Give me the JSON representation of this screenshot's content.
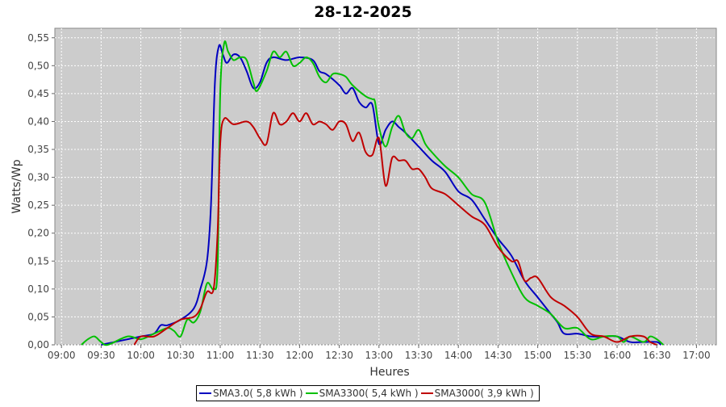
{
  "chart_data": {
    "type": "line",
    "title": "28-12-2025",
    "xlabel": "Heures",
    "ylabel": "Watts/Wp",
    "xlim": [
      "08:55",
      "17:15"
    ],
    "ylim": [
      0,
      0.567
    ],
    "grid": true,
    "legend_position": "bottom",
    "x_ticks": [
      "09:00",
      "09:30",
      "10:00",
      "10:30",
      "11:00",
      "11:30",
      "12:00",
      "12:30",
      "13:00",
      "13:30",
      "14:00",
      "14:30",
      "15:00",
      "15:30",
      "16:00",
      "16:30",
      "17:00"
    ],
    "y_ticks": [
      "0,00",
      "0,05",
      "0,10",
      "0,15",
      "0,20",
      "0,25",
      "0,30",
      "0,35",
      "0,40",
      "0,45",
      "0,50",
      "0,55"
    ],
    "colors": {
      "plot_background": "#cccccc",
      "grid": "#ffffff"
    },
    "series": [
      {
        "name": "SMA3.0( 5,8 kWh )",
        "color": "#0000c0",
        "x": [
          "09:30",
          "09:40",
          "09:50",
          "10:00",
          "10:10",
          "10:15",
          "10:20",
          "10:30",
          "10:40",
          "10:45",
          "10:50",
          "10:53",
          "10:56",
          "10:59",
          "11:02",
          "11:05",
          "11:10",
          "11:15",
          "11:20",
          "11:25",
          "11:30",
          "11:35",
          "11:40",
          "11:50",
          "12:00",
          "12:10",
          "12:15",
          "12:20",
          "12:30",
          "12:35",
          "12:40",
          "12:45",
          "12:50",
          "12:55",
          "13:00",
          "13:05",
          "13:10",
          "13:15",
          "13:20",
          "13:30",
          "13:40",
          "13:50",
          "14:00",
          "14:10",
          "14:20",
          "14:30",
          "14:40",
          "14:50",
          "15:00",
          "15:10",
          "15:15",
          "15:20",
          "15:30",
          "15:40",
          "15:50",
          "16:00",
          "16:10",
          "16:20",
          "16:30",
          "16:33"
        ],
        "y": [
          0,
          0.005,
          0.01,
          0.015,
          0.02,
          0.035,
          0.035,
          0.045,
          0.065,
          0.1,
          0.15,
          0.25,
          0.47,
          0.535,
          0.52,
          0.505,
          0.52,
          0.515,
          0.49,
          0.46,
          0.47,
          0.505,
          0.515,
          0.51,
          0.515,
          0.51,
          0.49,
          0.485,
          0.465,
          0.45,
          0.46,
          0.435,
          0.425,
          0.43,
          0.36,
          0.385,
          0.4,
          0.39,
          0.38,
          0.355,
          0.33,
          0.31,
          0.275,
          0.26,
          0.225,
          0.19,
          0.16,
          0.115,
          0.085,
          0.055,
          0.04,
          0.02,
          0.02,
          0.015,
          0.015,
          0.015,
          0.005,
          0.005,
          0.005,
          0
        ]
      },
      {
        "name": "SMA3300( 5,4 kWh )",
        "color": "#00c000",
        "x": [
          "09:15",
          "09:20",
          "09:25",
          "09:30",
          "09:35",
          "09:50",
          "10:00",
          "10:10",
          "10:20",
          "10:25",
          "10:30",
          "10:35",
          "10:40",
          "10:45",
          "10:50",
          "10:55",
          "10:58",
          "11:00",
          "11:03",
          "11:06",
          "11:10",
          "11:15",
          "11:20",
          "11:25",
          "11:28",
          "11:35",
          "11:40",
          "11:45",
          "11:50",
          "11:55",
          "12:00",
          "12:05",
          "12:10",
          "12:15",
          "12:20",
          "12:25",
          "12:30",
          "12:35",
          "12:40",
          "12:50",
          "12:55",
          "12:57",
          "13:00",
          "13:05",
          "13:10",
          "13:15",
          "13:20",
          "13:25",
          "13:30",
          "13:35",
          "13:40",
          "13:50",
          "14:00",
          "14:10",
          "14:20",
          "14:30",
          "14:40",
          "14:50",
          "15:00",
          "15:10",
          "15:20",
          "15:30",
          "15:40",
          "15:50",
          "16:00",
          "16:05",
          "16:10",
          "16:20",
          "16:25",
          "16:30",
          "16:35"
        ],
        "y": [
          0,
          0.01,
          0.015,
          0.005,
          0,
          0.015,
          0.01,
          0.02,
          0.03,
          0.025,
          0.015,
          0.045,
          0.04,
          0.06,
          0.11,
          0.1,
          0.14,
          0.45,
          0.54,
          0.525,
          0.51,
          0.515,
          0.51,
          0.47,
          0.455,
          0.49,
          0.525,
          0.515,
          0.525,
          0.5,
          0.505,
          0.515,
          0.505,
          0.48,
          0.47,
          0.485,
          0.485,
          0.48,
          0.465,
          0.445,
          0.44,
          0.435,
          0.39,
          0.355,
          0.39,
          0.41,
          0.38,
          0.37,
          0.385,
          0.36,
          0.345,
          0.32,
          0.3,
          0.27,
          0.255,
          0.185,
          0.13,
          0.085,
          0.07,
          0.055,
          0.03,
          0.03,
          0.01,
          0.015,
          0.015,
          0.005,
          0.015,
          0.005,
          0.015,
          0.01,
          0
        ]
      },
      {
        "name": "SMA3000( 3,9 kWh )",
        "color": "#c00000",
        "x": [
          "09:55",
          "10:00",
          "10:10",
          "10:20",
          "10:30",
          "10:40",
          "10:45",
          "10:50",
          "10:55",
          "10:58",
          "11:00",
          "11:03",
          "11:10",
          "11:20",
          "11:25",
          "11:30",
          "11:35",
          "11:40",
          "11:45",
          "11:50",
          "11:55",
          "12:00",
          "12:05",
          "12:10",
          "12:15",
          "12:20",
          "12:25",
          "12:30",
          "12:35",
          "12:40",
          "12:45",
          "12:50",
          "12:55",
          "13:00",
          "13:05",
          "13:10",
          "13:15",
          "13:20",
          "13:25",
          "13:30",
          "13:35",
          "13:40",
          "13:50",
          "14:00",
          "14:10",
          "14:20",
          "14:30",
          "14:40",
          "14:45",
          "14:50",
          "14:55",
          "15:00",
          "15:10",
          "15:20",
          "15:30",
          "15:40",
          "15:50",
          "16:00",
          "16:10",
          "16:20",
          "16:25",
          "16:30"
        ],
        "y": [
          0,
          0.015,
          0.015,
          0.03,
          0.045,
          0.05,
          0.065,
          0.095,
          0.1,
          0.2,
          0.36,
          0.405,
          0.395,
          0.4,
          0.39,
          0.37,
          0.36,
          0.415,
          0.395,
          0.4,
          0.415,
          0.4,
          0.415,
          0.395,
          0.4,
          0.395,
          0.385,
          0.4,
          0.395,
          0.365,
          0.38,
          0.345,
          0.34,
          0.37,
          0.285,
          0.335,
          0.33,
          0.33,
          0.315,
          0.315,
          0.3,
          0.28,
          0.27,
          0.25,
          0.23,
          0.215,
          0.175,
          0.15,
          0.15,
          0.115,
          0.12,
          0.12,
          0.085,
          0.07,
          0.05,
          0.02,
          0.015,
          0.005,
          0.015,
          0.015,
          0.005,
          0
        ]
      }
    ]
  }
}
